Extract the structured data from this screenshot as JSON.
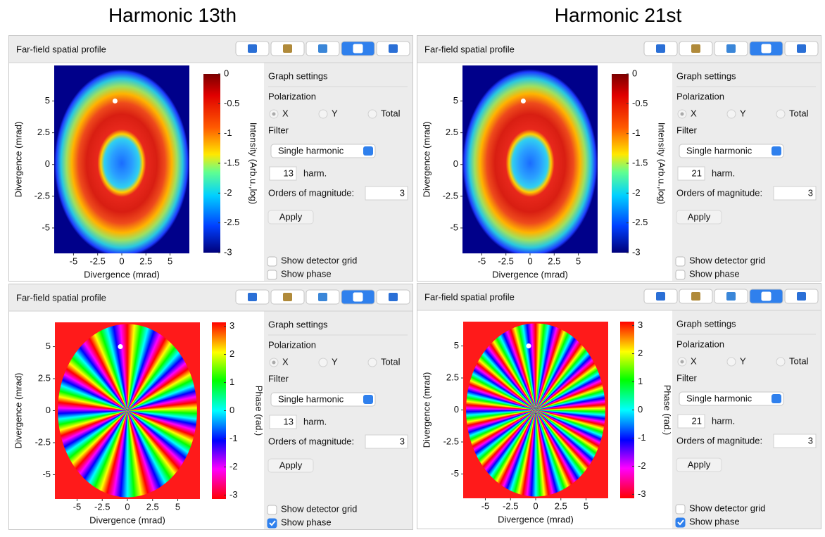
{
  "headers": [
    "Harmonic 13th",
    "Harmonic 21st"
  ],
  "panels": [
    {
      "title": "Far-field spatial profile",
      "plot": {
        "xlabel": "Divergence (mrad)",
        "ylabel": "Divergence (mrad)",
        "xlim": [
          -7,
          7
        ],
        "ylim": [
          -7,
          7.8
        ],
        "xticks": [
          -5,
          -2.5,
          0,
          2.5,
          5
        ],
        "yticks": [
          -5,
          -2.5,
          0,
          2.5,
          5
        ],
        "colorbar": {
          "label": "Intensity (Arb.u.,log)",
          "lim": [
            -3,
            0
          ],
          "ticks": [
            0,
            -0.5,
            -1,
            -1.5,
            -2,
            -2.5,
            -3
          ]
        }
      },
      "settings": {
        "title": "Graph settings",
        "polarization_label": "Polarization",
        "polarization_options": [
          "X",
          "Y",
          "Total"
        ],
        "polarization_selected": 0,
        "filter_label": "Filter",
        "filter": "Single harmonic",
        "harmonic": 13,
        "harmonic_unit": "harm.",
        "orders_label": "Orders of magnitude:",
        "orders": 3,
        "apply": "Apply",
        "checkboxes": [
          {
            "label": "Show detector grid",
            "checked": false
          },
          {
            "label": "Show phase",
            "checked": false
          }
        ]
      }
    },
    {
      "title": "Far-field spatial profile",
      "plot": {
        "xlabel": "Divergence (mrad)",
        "ylabel": "Divergence (mrad)",
        "xlim": [
          -7,
          7
        ],
        "ylim": [
          -7,
          7.8
        ],
        "xticks": [
          -5,
          -2.5,
          0,
          2.5,
          5
        ],
        "yticks": [
          -5,
          -2.5,
          0,
          2.5,
          5
        ],
        "colorbar": {
          "label": "Intensity (Arb.u.,log)",
          "lim": [
            -3,
            0
          ],
          "ticks": [
            0,
            -0.5,
            -1,
            -1.5,
            -2,
            -2.5,
            -3
          ]
        }
      },
      "settings": {
        "title": "Graph settings",
        "polarization_label": "Polarization",
        "polarization_options": [
          "X",
          "Y",
          "Total"
        ],
        "polarization_selected": 0,
        "filter_label": "Filter",
        "filter": "Single harmonic",
        "harmonic": 21,
        "harmonic_unit": "harm.",
        "orders_label": "Orders of magnitude:",
        "orders": 3,
        "apply": "Apply",
        "checkboxes": [
          {
            "label": "Show detector grid",
            "checked": false
          },
          {
            "label": "Show phase",
            "checked": false
          }
        ]
      }
    },
    {
      "title": "Far-field spatial profile",
      "plot": {
        "xlabel": "Divergence (mrad)",
        "ylabel": "Divergence (mrad)",
        "xlim": [
          -7.2,
          7.2
        ],
        "ylim": [
          -6.9,
          6.9
        ],
        "xticks": [
          -5,
          -2.5,
          0,
          2.5,
          5
        ],
        "yticks": [
          -5,
          -2.5,
          0,
          2.5,
          5
        ],
        "colorbar": {
          "label": "Phase (rad.)",
          "lim": [
            -3.14,
            3.14
          ],
          "ticks": [
            3,
            2,
            1,
            0,
            -1,
            -2,
            -3
          ]
        }
      },
      "settings": {
        "title": "Graph settings",
        "polarization_label": "Polarization",
        "polarization_options": [
          "X",
          "Y",
          "Total"
        ],
        "polarization_selected": 0,
        "filter_label": "Filter",
        "filter": "Single harmonic",
        "harmonic": 13,
        "harmonic_unit": "harm.",
        "orders_label": "Orders of magnitude:",
        "orders": 3,
        "apply": "Apply",
        "checkboxes": [
          {
            "label": "Show detector grid",
            "checked": false
          },
          {
            "label": "Show phase",
            "checked": true
          }
        ]
      }
    },
    {
      "title": "Far-field spatial profile",
      "plot": {
        "xlabel": "Divergence (mrad)",
        "ylabel": "Divergence (mrad)",
        "xlim": [
          -7.2,
          7.2
        ],
        "ylim": [
          -6.9,
          6.9
        ],
        "xticks": [
          -5,
          -2.5,
          0,
          2.5,
          5
        ],
        "yticks": [
          -5,
          -2.5,
          0,
          2.5,
          5
        ],
        "colorbar": {
          "label": "Phase (rad.)",
          "lim": [
            -3.14,
            3.14
          ],
          "ticks": [
            3,
            2,
            1,
            0,
            -1,
            -2,
            -3
          ]
        }
      },
      "settings": {
        "title": "Graph settings",
        "polarization_label": "Polarization",
        "polarization_options": [
          "X",
          "Y",
          "Total"
        ],
        "polarization_selected": 0,
        "filter_label": "Filter",
        "filter": "Single harmonic",
        "harmonic": 21,
        "harmonic_unit": "harm.",
        "orders_label": "Orders of magnitude:",
        "orders": 3,
        "apply": "Apply",
        "checkboxes": [
          {
            "label": "Show detector grid",
            "checked": false
          },
          {
            "label": "Show phase",
            "checked": true
          }
        ]
      }
    }
  ]
}
